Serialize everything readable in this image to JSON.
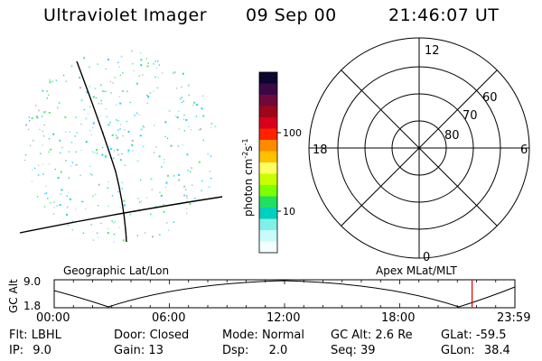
{
  "header": {
    "instrument": "Ultraviolet Imager",
    "date": "09 Sep 00",
    "time": "21:46:07 UT"
  },
  "colorbar": {
    "label_main": "photon cm",
    "label_exp1": "-2",
    "label_mid": "s",
    "label_exp2": "-1",
    "tick_high": "100",
    "tick_low": "10",
    "colors": [
      "#0a0630",
      "#3a0845",
      "#6e0a3a",
      "#a0061a",
      "#d8001a",
      "#ff2200",
      "#ff8a00",
      "#ffc000",
      "#ffff60",
      "#c8ff00",
      "#7cff00",
      "#20e060",
      "#00d0c0",
      "#80f0e8",
      "#c8fcfa",
      "#f4fefe"
    ]
  },
  "polar": {
    "mlt_top": "12",
    "mlt_left": "18",
    "mlt_right": "6",
    "mlt_bottom": "0",
    "lat_60": "60",
    "lat_70": "70",
    "lat_80": "80"
  },
  "labels": {
    "geo": "Geographic Lat/Lon",
    "apex": "Apex MLat/MLT"
  },
  "altitude_plot": {
    "ylabel": "GC Alt",
    "ytick_top": "9.0",
    "ytick_bottom": "1.8",
    "xticks": [
      "00:00",
      "06:00",
      "12:00",
      "18:00",
      "23:59"
    ],
    "marker_hour": 21.77
  },
  "status": {
    "flt_label": "Flt:",
    "flt_value": "LBHL",
    "ip_label": "IP:",
    "ip_value": "9.0",
    "door_label": "Door:",
    "door_value": "Closed",
    "gain_label": "Gain:",
    "gain_value": "13",
    "mode_label": "Mode:",
    "mode_value": "Normal",
    "dsp_label": "Dsp:",
    "dsp_value": "2.0",
    "gcalt_label": "GC Alt:",
    "gcalt_value": "2.6 Re",
    "seq_label": "Seq:",
    "seq_value": "39",
    "glat_label": "GLat:",
    "glat_value": "-59.5",
    "glon_label": "GLon:",
    "glon_value": "38.4"
  }
}
